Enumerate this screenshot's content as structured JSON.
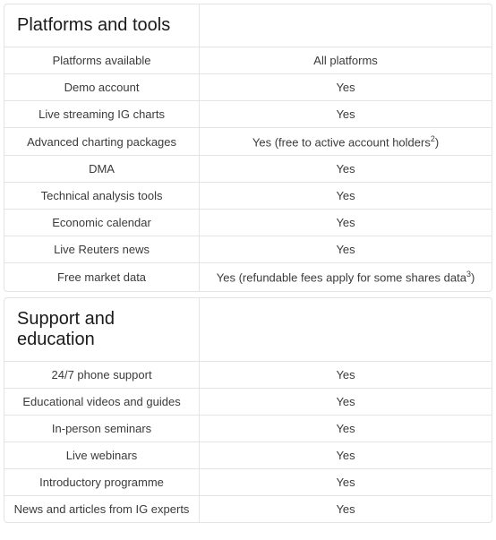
{
  "sections": [
    {
      "title": "Platforms and tools",
      "rows": [
        {
          "label": "Platforms available",
          "value": "All platforms"
        },
        {
          "label": "Demo account",
          "value": "Yes"
        },
        {
          "label": "Live streaming IG charts",
          "value": "Yes"
        },
        {
          "label": "Advanced charting packages",
          "value": "Yes (free to active account holders",
          "sup": "2",
          "value_after": ")"
        },
        {
          "label": "DMA",
          "value": "Yes"
        },
        {
          "label": "Technical analysis tools",
          "value": "Yes"
        },
        {
          "label": "Economic calendar",
          "value": "Yes"
        },
        {
          "label": "Live Reuters news",
          "value": "Yes"
        },
        {
          "label": "Free market data",
          "value": "Yes (refundable fees apply for some shares data",
          "sup": "3",
          "value_after": ")"
        }
      ]
    },
    {
      "title": "Support and education",
      "rows": [
        {
          "label": "24/7 phone support",
          "value": "Yes"
        },
        {
          "label": "Educational videos and guides",
          "value": "Yes"
        },
        {
          "label": "In-person seminars",
          "value": "Yes"
        },
        {
          "label": "Live webinars",
          "value": "Yes"
        },
        {
          "label": "Introductory programme",
          "value": "Yes"
        },
        {
          "label": "News and articles from IG experts",
          "value": "Yes"
        }
      ]
    }
  ],
  "style": {
    "border_color": "#e4e4e4",
    "background_color": "#ffffff",
    "text_color": "#3b3b3b",
    "header_text_color": "#1a1a1a",
    "header_fontsize": 20,
    "cell_fontsize": 13,
    "label_col_width_pct": 40,
    "value_col_width_pct": 60
  }
}
